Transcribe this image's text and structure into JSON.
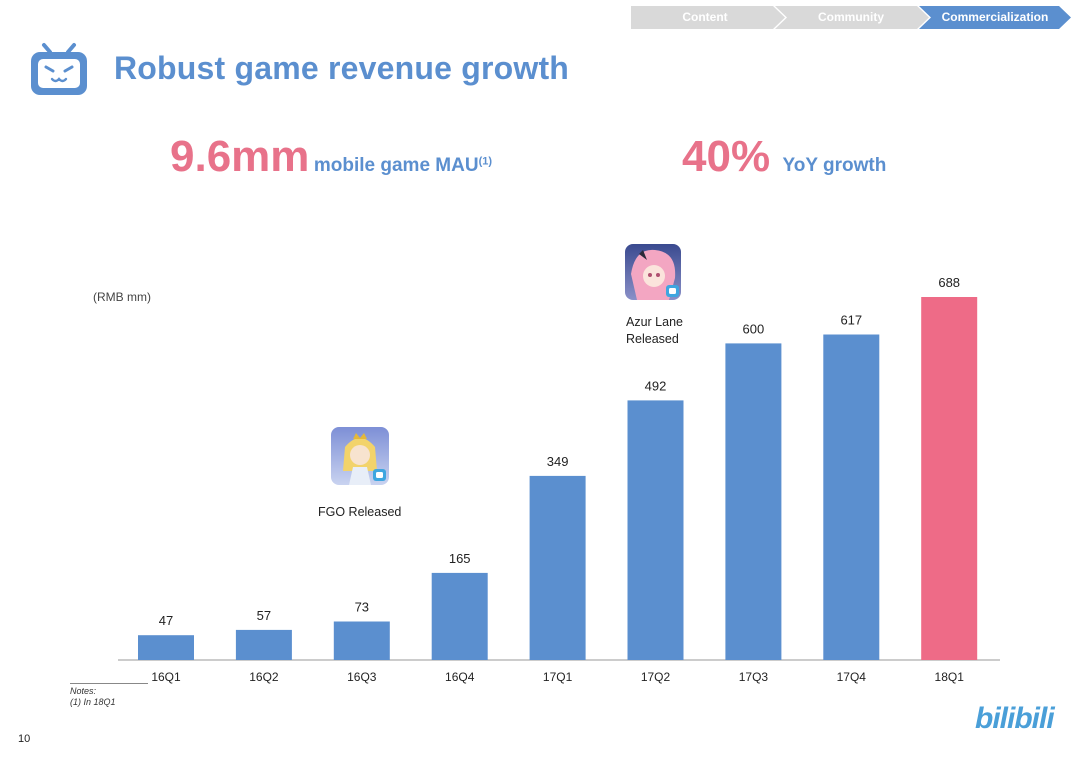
{
  "nav": {
    "tabs": [
      {
        "label": "Content",
        "active": false
      },
      {
        "label": "Community",
        "active": false
      },
      {
        "label": "Commercialization",
        "active": true
      }
    ]
  },
  "header": {
    "title": "Robust game revenue growth"
  },
  "kpis": {
    "mau_value": "9.6mm",
    "mau_label": "mobile game MAU",
    "mau_note": "(1)",
    "growth_value": "40%",
    "growth_label": "YoY growth"
  },
  "annotations": {
    "fgo": "FGO Released",
    "azur_line1": "Azur Lane",
    "azur_line2": "Released"
  },
  "notes": {
    "title": "Notes:",
    "item1": "(1)    In 18Q1"
  },
  "footer": {
    "page": "10",
    "brand": "bilibili"
  },
  "colors": {
    "bar": "#5b8fcf",
    "highlight": "#ee6b87",
    "title": "#5b8fcf",
    "kpi": "#e8728a"
  },
  "chart_data": {
    "type": "bar",
    "title": "Robust game revenue growth",
    "ylabel": "(RMB mm)",
    "xlabel": "",
    "categories": [
      "16Q1",
      "16Q2",
      "16Q3",
      "16Q4",
      "17Q1",
      "17Q2",
      "17Q3",
      "17Q4",
      "18Q1"
    ],
    "values": [
      47,
      57,
      73,
      165,
      349,
      492,
      600,
      617,
      688
    ],
    "highlight_index": 8,
    "ylim": [
      0,
      688
    ],
    "grid": false
  }
}
